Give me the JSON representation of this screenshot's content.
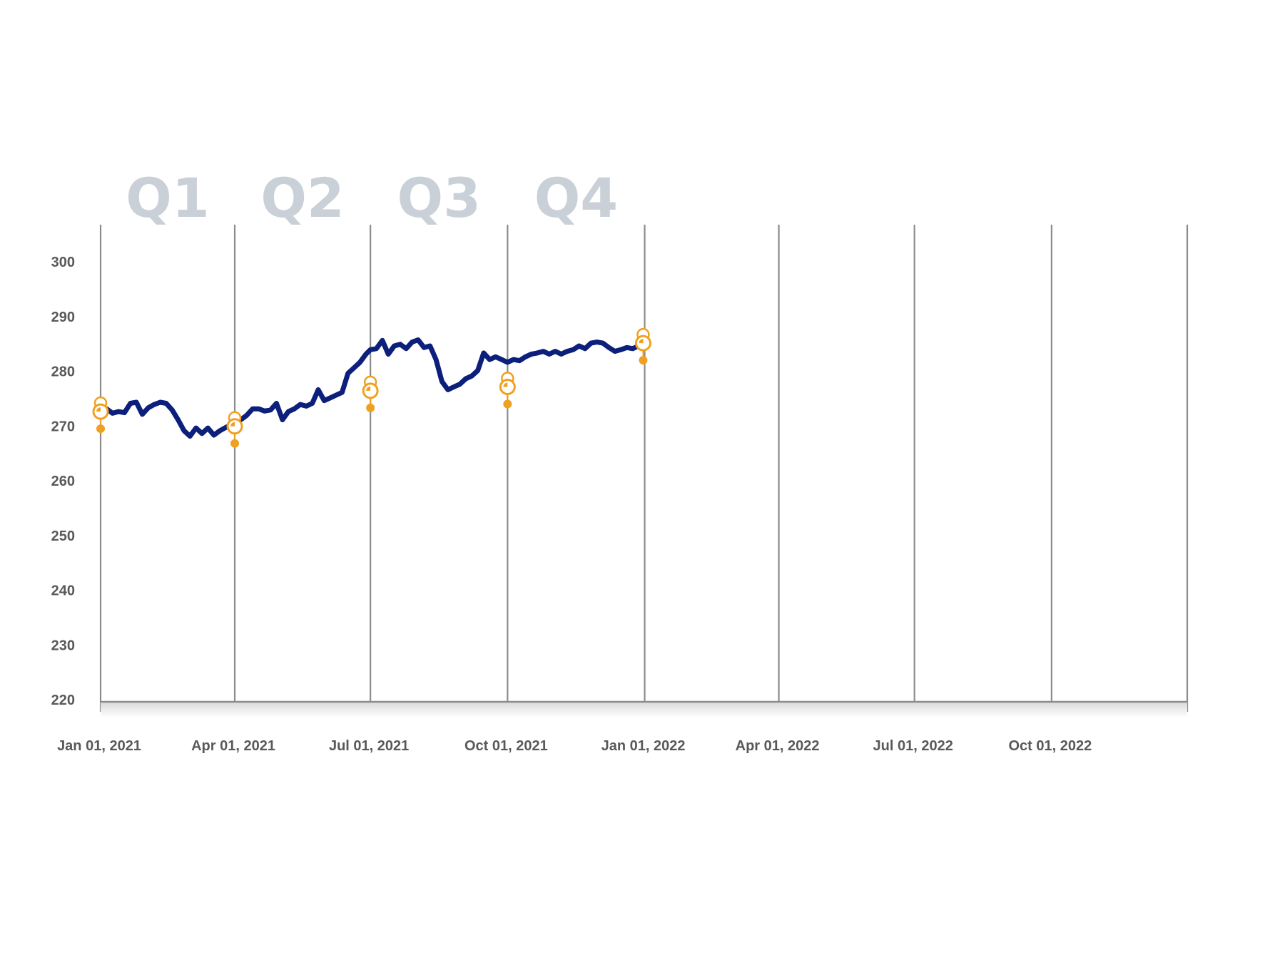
{
  "chart_data": {
    "type": "line",
    "title": "",
    "xlabel": "",
    "ylabel": "",
    "ylim": [
      220,
      300
    ],
    "yticks": [
      220,
      230,
      240,
      250,
      260,
      270,
      280,
      290,
      300
    ],
    "xrange": [
      "2021-01-01",
      "2022-12-31"
    ],
    "xticks": [
      "2021-01-01",
      "2021-04-01",
      "2021-07-01",
      "2021-10-01",
      "2022-01-01",
      "2022-04-01",
      "2022-07-01",
      "2022-10-01"
    ],
    "xtick_labels": [
      "Jan 01, 2021",
      "Apr 01, 2021",
      "Jul 01, 2021",
      "Oct 01, 2021",
      "Jan 01, 2022",
      "Apr 01, 2022",
      "Jul 01, 2022",
      "Oct 01, 2022"
    ],
    "grid": "vertical",
    "quarter_labels": [
      {
        "text": "Q1",
        "from": "2021-01-01",
        "to": "2021-04-01"
      },
      {
        "text": "Q2",
        "from": "2021-04-01",
        "to": "2021-07-01"
      },
      {
        "text": "Q3",
        "from": "2021-07-01",
        "to": "2021-10-01"
      },
      {
        "text": "Q4",
        "from": "2021-10-01",
        "to": "2022-01-01"
      }
    ],
    "series": [
      {
        "color": "#0c1f7a",
        "x": [
          "2021-01-01",
          "2021-01-05",
          "2021-01-09",
          "2021-01-13",
          "2021-01-17",
          "2021-01-21",
          "2021-01-25",
          "2021-01-29",
          "2021-02-02",
          "2021-02-06",
          "2021-02-10",
          "2021-02-14",
          "2021-02-18",
          "2021-02-22",
          "2021-02-26",
          "2021-03-02",
          "2021-03-06",
          "2021-03-10",
          "2021-03-14",
          "2021-03-18",
          "2021-03-22",
          "2021-03-26",
          "2021-03-29",
          "2021-04-01",
          "2021-04-05",
          "2021-04-09",
          "2021-04-13",
          "2021-04-17",
          "2021-04-21",
          "2021-04-25",
          "2021-04-29",
          "2021-05-03",
          "2021-05-07",
          "2021-05-11",
          "2021-05-15",
          "2021-05-19",
          "2021-05-23",
          "2021-05-27",
          "2021-05-31",
          "2021-06-04",
          "2021-06-08",
          "2021-06-12",
          "2021-06-16",
          "2021-06-20",
          "2021-06-24",
          "2021-06-28",
          "2021-07-01",
          "2021-07-05",
          "2021-07-09",
          "2021-07-13",
          "2021-07-17",
          "2021-07-21",
          "2021-07-25",
          "2021-07-29",
          "2021-08-02",
          "2021-08-06",
          "2021-08-10",
          "2021-08-14",
          "2021-08-18",
          "2021-08-22",
          "2021-08-26",
          "2021-08-30",
          "2021-09-03",
          "2021-09-07",
          "2021-09-11",
          "2021-09-15",
          "2021-09-19",
          "2021-09-23",
          "2021-09-27",
          "2021-10-01",
          "2021-10-05",
          "2021-10-09",
          "2021-10-13",
          "2021-10-17",
          "2021-10-21",
          "2021-10-25",
          "2021-10-29",
          "2021-11-02",
          "2021-11-06",
          "2021-11-10",
          "2021-11-14",
          "2021-11-18",
          "2021-11-22",
          "2021-11-26",
          "2021-11-30",
          "2021-12-04",
          "2021-12-08",
          "2021-12-12",
          "2021-12-16",
          "2021-12-20",
          "2021-12-24",
          "2021-12-28",
          "2021-12-31"
        ],
        "values": [
          272.5,
          273.0,
          272.2,
          272.5,
          272.3,
          274.0,
          274.2,
          272.0,
          273.2,
          273.8,
          274.2,
          274.0,
          272.8,
          271.0,
          269.0,
          268.0,
          269.5,
          268.5,
          269.5,
          268.2,
          269.0,
          269.6,
          270.0,
          270.5,
          271.0,
          271.8,
          273.0,
          273.0,
          272.6,
          272.8,
          274.0,
          271.0,
          272.5,
          273.0,
          273.8,
          273.5,
          274.0,
          276.5,
          274.5,
          275.0,
          275.5,
          276.0,
          279.5,
          280.5,
          281.5,
          283.0,
          283.8,
          284.0,
          285.5,
          283.0,
          284.5,
          284.8,
          284.0,
          285.2,
          285.6,
          284.2,
          284.5,
          282.0,
          278.0,
          276.5,
          277.0,
          277.5,
          278.5,
          279.0,
          280.0,
          283.2,
          282.0,
          282.5,
          282.0,
          281.5,
          282.0,
          281.8,
          282.5,
          283.0,
          283.2,
          283.5,
          283.0,
          283.5,
          283.0,
          283.5,
          283.8,
          284.5,
          284.0,
          285.0,
          285.2,
          285.0,
          284.2,
          283.5,
          283.8,
          284.2,
          284.0,
          284.5,
          285.0
        ]
      }
    ],
    "markers": {
      "color": "#f0a020",
      "x": [
        "2021-01-01",
        "2021-04-01",
        "2021-07-01",
        "2021-10-01",
        "2021-12-31"
      ],
      "values": [
        272.5,
        269.8,
        276.3,
        277.0,
        285.0
      ]
    }
  }
}
